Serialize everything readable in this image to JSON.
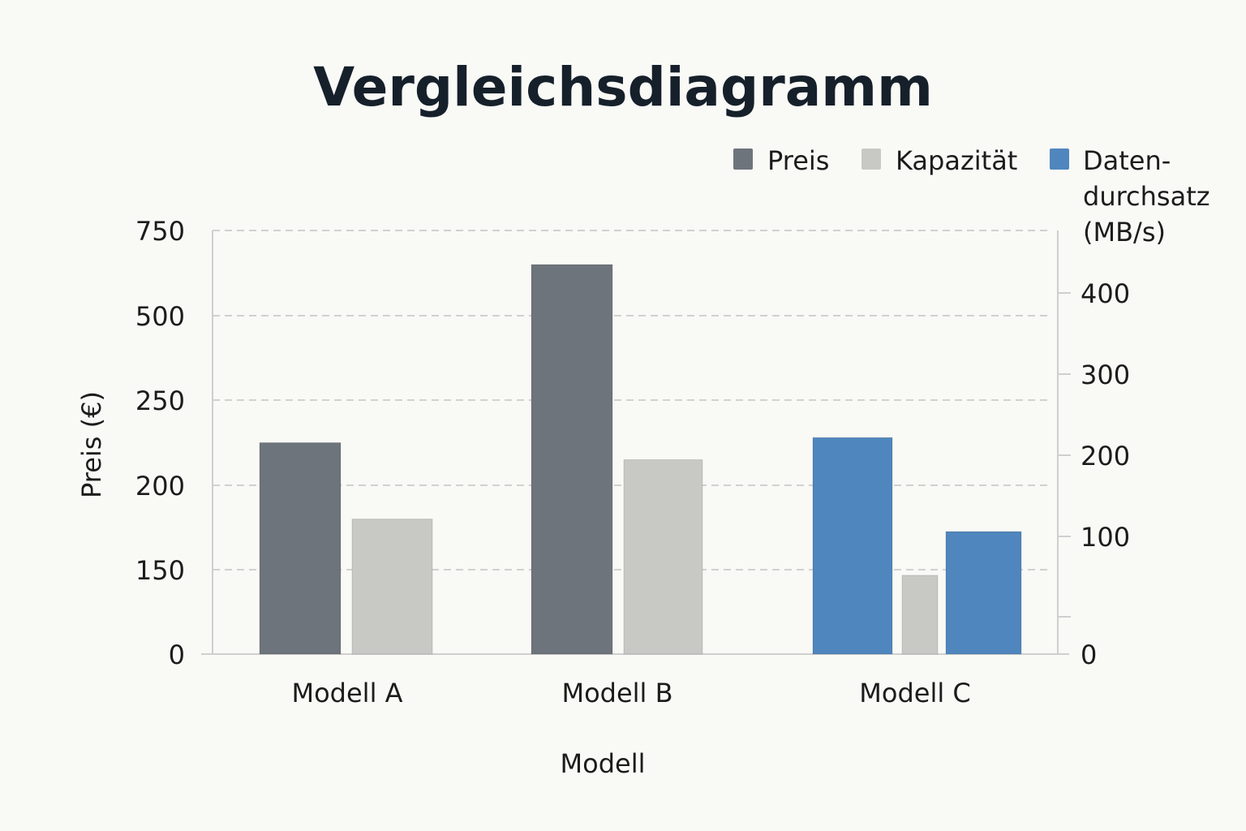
{
  "chart_data": {
    "type": "bar",
    "title": "Vergleichsdiagramm",
    "xlabel": "Modell",
    "ylabel": "Preis (€)",
    "categories": [
      "Modell A",
      "Modell B",
      "Modell C"
    ],
    "y_left_ticks": [
      "0",
      "150",
      "200",
      "250",
      "500",
      "750"
    ],
    "y_right_ticks": [
      "0",
      "100",
      "200",
      "300",
      "400"
    ],
    "series": [
      {
        "name": "Preis",
        "color": "#6e747b",
        "axis": "left",
        "values": [
          225,
          650,
          null
        ]
      },
      {
        "name": "Kapazität",
        "color": "#c8c9c4",
        "axis": "left",
        "values": [
          180,
          215,
          140
        ]
      },
      {
        "name": "Daten-\ndurchsatz\n(MB/s)",
        "color": "#4f86bd",
        "axis": "right",
        "values": [
          null,
          null,
          106
        ]
      }
    ],
    "extra_bars": [
      {
        "category": "Modell C",
        "series": "Preis",
        "value": 228,
        "color": "#4f86bd"
      }
    ],
    "legend": [
      {
        "label": "Preis",
        "color": "#6e747b"
      },
      {
        "label": "Kapazität",
        "color": "#c8c9c4"
      },
      {
        "label_lines": [
          "Daten-",
          "durchsatz",
          "(MB/s)"
        ],
        "color": "#4f86bd"
      }
    ],
    "legend_position": "top-right",
    "grid": true
  }
}
